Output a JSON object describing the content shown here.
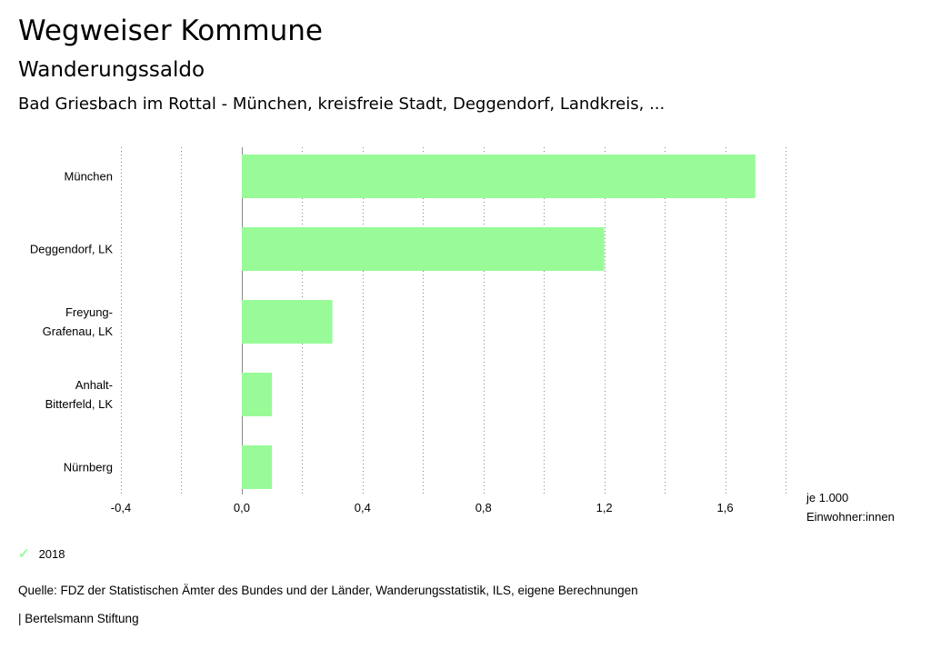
{
  "header": {
    "title": "Wegweiser Kommune",
    "subtitle": "Wanderungssaldo",
    "subsubtitle": "Bad Griesbach im Rottal - München, kreisfreie Stadt, Deggendorf, Landkreis, ..."
  },
  "chart_data": {
    "type": "bar",
    "orientation": "horizontal",
    "categories": [
      [
        "München"
      ],
      [
        "Deggendorf, LK"
      ],
      [
        "Freyung-",
        "Grafenau, LK"
      ],
      [
        "Anhalt-",
        "Bitterfeld, LK"
      ],
      [
        "Nürnberg"
      ]
    ],
    "series": [
      {
        "name": "2018",
        "values": [
          1.7,
          1.2,
          0.3,
          0.1,
          0.1
        ],
        "color": "#98fb98"
      }
    ],
    "xlim": [
      -0.4,
      1.8
    ],
    "ticks": [
      -0.4,
      -0.2,
      0.0,
      0.2,
      0.4,
      0.6,
      0.8,
      1.0,
      1.2,
      1.4,
      1.6,
      1.8
    ],
    "tick_labels": [
      "-0,4",
      "",
      "0,0",
      "",
      "0,4",
      "",
      "0,8",
      "",
      "1,2",
      "",
      "1,6",
      ""
    ],
    "unit_label": [
      "je 1.000",
      "Einwohner:innen"
    ],
    "grid": "dotted vertical"
  },
  "legend": {
    "label": "2018",
    "color": "#98fb98"
  },
  "footer": {
    "source": "Quelle: FDZ der Statistischen Ämter des Bundes und der Länder, Wanderungsstatistik, ILS, eigene Berechnungen",
    "brand": "| Bertelsmann Stiftung"
  }
}
